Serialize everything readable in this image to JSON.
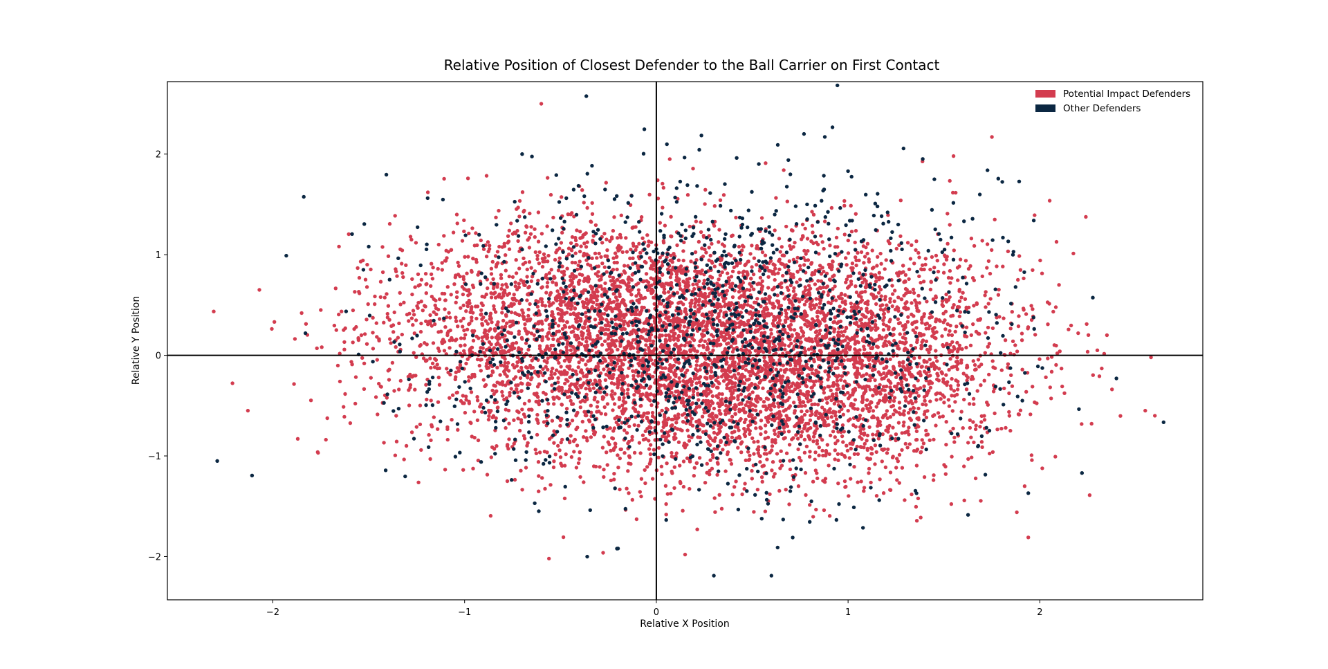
{
  "chart_data": {
    "type": "scatter",
    "title": "Relative Position of Closest Defender to the Ball Carrier on First Contact",
    "xlabel": "Relative X Position",
    "ylabel": "Relative Y Position",
    "xlim": [
      -2.55,
      2.85
    ],
    "ylim": [
      -2.43,
      2.72
    ],
    "xticks": [
      -2,
      -1,
      0,
      1,
      2
    ],
    "yticks": [
      -2,
      -1,
      0,
      1,
      2
    ],
    "xtick_labels": [
      "−2",
      "−1",
      "0",
      "1",
      "2"
    ],
    "ytick_labels": [
      "−2",
      "−1",
      "0",
      "1",
      "2"
    ],
    "reference_lines": {
      "x": 0,
      "y": 0
    },
    "legend_position": "top-right",
    "colors": {
      "potential": "#d33c4f",
      "other": "#0b2742",
      "reference_line": "#000000"
    },
    "series": [
      {
        "name": "Potential Impact Defenders",
        "color": "#d33c4f",
        "point_count": 6500,
        "distribution": {
          "clusters": [
            {
              "mean_x": 0.25,
              "mean_y": 0.45,
              "sd_x": 0.55,
              "sd_y": 0.45
            },
            {
              "mean_x": 0.35,
              "mean_y": -0.45,
              "sd_x": 0.55,
              "sd_y": 0.45
            },
            {
              "mean_x": -0.55,
              "mean_y": 0.25,
              "sd_x": 0.5,
              "sd_y": 0.55
            },
            {
              "mean_x": 1.1,
              "mean_y": 0.0,
              "sd_x": 0.45,
              "sd_y": 0.55
            }
          ]
        },
        "notable_points": [
          [
            -0.6,
            2.5
          ],
          [
            1.75,
            2.17
          ],
          [
            1.55,
            1.98
          ],
          [
            0.07,
            1.95
          ],
          [
            0.57,
            1.91
          ],
          [
            -2.13,
            -0.55
          ],
          [
            -1.87,
            -0.83
          ],
          [
            -1.75,
            0.45
          ],
          [
            -1.85,
            0.42
          ],
          [
            -1.77,
            0.07
          ],
          [
            -1.57,
            -0.48
          ],
          [
            -1.65,
            -0.26
          ],
          [
            -0.56,
            -2.02
          ],
          [
            0.15,
            -1.98
          ],
          [
            2.55,
            -0.55
          ],
          [
            2.6,
            -0.6
          ],
          [
            2.58,
            -0.02
          ],
          [
            2.35,
            0.2
          ],
          [
            2.26,
            -1.39
          ],
          [
            2.27,
            -0.68
          ],
          [
            2.2,
            0.22
          ],
          [
            2.3,
            0.05
          ],
          [
            1.94,
            -1.81
          ],
          [
            1.88,
            -1.56
          ],
          [
            2.1,
            0.7
          ]
        ]
      },
      {
        "name": "Other Defenders",
        "color": "#0b2742",
        "point_count": 1250,
        "distribution": {
          "clusters": [
            {
              "mean_x": 0.3,
              "mean_y": 0.2,
              "sd_x": 0.75,
              "sd_y": 0.75
            }
          ]
        },
        "notable_points": [
          [
            -2.29,
            -1.05
          ],
          [
            -1.93,
            0.99
          ],
          [
            -1.83,
            0.22
          ],
          [
            -0.7,
            2.0
          ],
          [
            0.77,
            2.2
          ],
          [
            0.3,
            -2.19
          ],
          [
            0.6,
            -2.19
          ],
          [
            -0.2,
            -1.92
          ],
          [
            2.22,
            -1.17
          ],
          [
            1.86,
            1.0
          ],
          [
            1.99,
            -0.11
          ],
          [
            1.45,
            1.75
          ],
          [
            1.0,
            1.83
          ],
          [
            -1.5,
            1.08
          ],
          [
            1.94,
            -1.37
          ]
        ]
      }
    ]
  }
}
